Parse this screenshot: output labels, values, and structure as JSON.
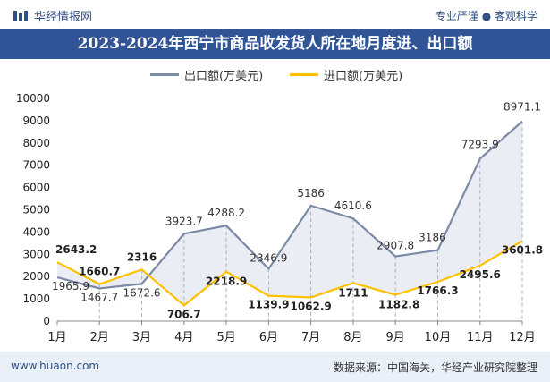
{
  "header": {
    "brand": "华经情报网",
    "slogan": "专业严谨 ● 客观科学"
  },
  "title": "2023-2024年西宁市商品收发货人所在地月度进、出口额",
  "legend": {
    "series_export": "出口额(万美元)",
    "series_import": "进口额(万美元)"
  },
  "footer": {
    "url": "www.huaon.com",
    "source": "数据来源：中国海关，华经产业研究院整理"
  },
  "colors": {
    "export_line": "#7c8aa5",
    "import_line": "#ffc000",
    "title_bg": "#305496"
  },
  "chart_data": {
    "type": "line",
    "title": "2023-2024年西宁市商品收发货人所在地月度进、出口额",
    "categories": [
      "1月",
      "2月",
      "3月",
      "4月",
      "5月",
      "6月",
      "7月",
      "8月",
      "9月",
      "10月",
      "11月",
      "12月"
    ],
    "series": [
      {
        "name": "出口额(万美元)",
        "values": [
          1965.9,
          1467.7,
          1672.6,
          3923.7,
          4288.2,
          2346.9,
          5186,
          4610.6,
          2907.8,
          3186,
          7293.9,
          8971.1
        ]
      },
      {
        "name": "进口额(万美元)",
        "values": [
          2643.2,
          1660.7,
          2316,
          706.7,
          2218.9,
          1139.9,
          1062.9,
          1711,
          1182.8,
          1766.3,
          2495.6,
          3601.8
        ]
      }
    ],
    "yticks": [
      0,
      1000,
      2000,
      3000,
      4000,
      5000,
      6000,
      7000,
      8000,
      9000,
      10000
    ],
    "ylim": [
      0,
      10000
    ],
    "grid": false,
    "legend_position": "top"
  }
}
